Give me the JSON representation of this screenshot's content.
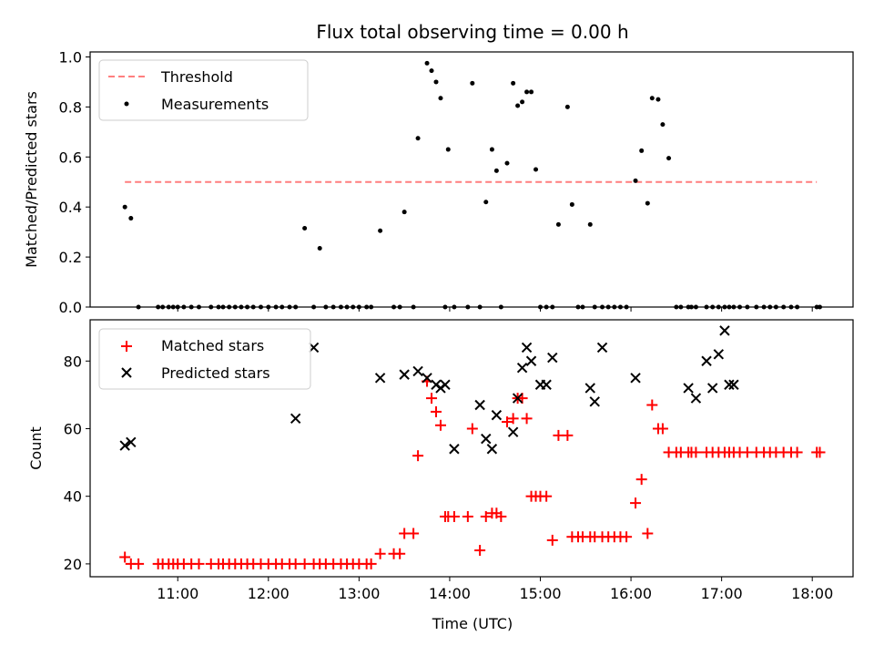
{
  "chart_data": [
    {
      "type": "scatter",
      "title": "Flux total observing time = 0.00 h",
      "xlabel": "",
      "ylabel": "Matched/Predicted stars",
      "xlim": [
        "10:02",
        "18:27"
      ],
      "ylim": [
        0,
        1.02
      ],
      "x_ticks": [
        "11:00",
        "12:00",
        "13:00",
        "14:00",
        "15:00",
        "16:00",
        "17:00",
        "18:00"
      ],
      "x_tick_labels_shown": false,
      "y_ticks": [
        0.0,
        0.2,
        0.4,
        0.6,
        0.8,
        1.0
      ],
      "y_tick_labels": [
        "0.0",
        "0.2",
        "0.4",
        "0.6",
        "0.8",
        "1.0"
      ],
      "legend_position": "upper-left",
      "grid": false,
      "threshold": {
        "name": "Threshold",
        "y": 0.5,
        "x_range": [
          "10:25",
          "18:03"
        ],
        "color": "#ff7f7f",
        "style": "dashed"
      },
      "series": [
        {
          "name": "Measurements",
          "color": "#000000",
          "marker": "dot",
          "x": [
            "10:25",
            "10:29",
            "10:34",
            "10:47",
            "10:50",
            "10:54",
            "10:57",
            "11:00",
            "11:04",
            "11:09",
            "11:14",
            "11:22",
            "11:27",
            "11:30",
            "11:34",
            "11:38",
            "11:42",
            "11:46",
            "11:50",
            "11:55",
            "12:00",
            "12:05",
            "12:09",
            "12:14",
            "12:18",
            "12:24",
            "12:30",
            "12:34",
            "12:38",
            "12:43",
            "12:48",
            "12:52",
            "12:56",
            "13:00",
            "13:05",
            "13:08",
            "13:14",
            "13:23",
            "13:27",
            "13:30",
            "13:36",
            "13:39",
            "13:45",
            "13:48",
            "13:51",
            "13:54",
            "13:57",
            "13:59",
            "14:03",
            "14:12",
            "14:15",
            "14:20",
            "14:24",
            "14:28",
            "14:31",
            "14:34",
            "14:38",
            "14:42",
            "14:45",
            "14:48",
            "14:51",
            "14:54",
            "14:57",
            "15:00",
            "15:04",
            "15:08",
            "15:12",
            "15:18",
            "15:21",
            "15:25",
            "15:28",
            "15:33",
            "15:36",
            "15:41",
            "15:45",
            "15:49",
            "15:53",
            "15:57",
            "16:03",
            "16:07",
            "16:11",
            "16:14",
            "16:18",
            "16:21",
            "16:25",
            "16:30",
            "16:33",
            "16:38",
            "16:40",
            "16:43",
            "16:50",
            "16:54",
            "16:58",
            "17:02",
            "17:05",
            "17:08",
            "17:12",
            "17:17",
            "17:23",
            "17:28",
            "17:32",
            "17:36",
            "17:41",
            "17:46",
            "17:50",
            "18:03",
            "18:05"
          ],
          "y": [
            0.4,
            0.355,
            0,
            0,
            0,
            0,
            0,
            0,
            0,
            0,
            0,
            0,
            0,
            0,
            0,
            0,
            0,
            0,
            0,
            0,
            0,
            0,
            0,
            0,
            0,
            0.315,
            0,
            0.235,
            0,
            0,
            0,
            0,
            0,
            0,
            0,
            0,
            0.305,
            0,
            0,
            0.38,
            0,
            0.675,
            0.975,
            0.945,
            0.9,
            0.835,
            0,
            0.63,
            0,
            0,
            0.895,
            0,
            0.42,
            0.63,
            0.545,
            0,
            0.575,
            0.895,
            0.805,
            0.82,
            0.86,
            0.86,
            0.55,
            0,
            0,
            0,
            0.33,
            0.8,
            0.41,
            0,
            0,
            0.33,
            0,
            0,
            0,
            0,
            0,
            0,
            0.505,
            0.625,
            0.415,
            0.835,
            0.83,
            0.73,
            0.595,
            0,
            0,
            0,
            0,
            0,
            0,
            0,
            0,
            0,
            0,
            0,
            0,
            0,
            0,
            0,
            0,
            0,
            0,
            0,
            0,
            0,
            0
          ]
        }
      ]
    },
    {
      "type": "scatter",
      "title": "",
      "xlabel": "Time (UTC)",
      "ylabel": "Count",
      "xlim": [
        "10:02",
        "18:27"
      ],
      "ylim": [
        16.2,
        92.2
      ],
      "x_ticks": [
        "11:00",
        "12:00",
        "13:00",
        "14:00",
        "15:00",
        "16:00",
        "17:00",
        "18:00"
      ],
      "x_tick_labels": [
        "11:00",
        "12:00",
        "13:00",
        "14:00",
        "15:00",
        "16:00",
        "17:00",
        "18:00"
      ],
      "y_ticks": [
        20,
        40,
        60,
        80
      ],
      "y_tick_labels": [
        "20",
        "40",
        "60",
        "80"
      ],
      "legend_position": "upper-left",
      "grid": false,
      "series": [
        {
          "name": "Matched stars",
          "color": "#ff0000",
          "marker": "plus",
          "x": [
            "10:25",
            "10:29",
            "10:34",
            "10:47",
            "10:50",
            "10:54",
            "10:57",
            "11:00",
            "11:04",
            "11:09",
            "11:14",
            "11:22",
            "11:27",
            "11:30",
            "11:34",
            "11:38",
            "11:42",
            "11:46",
            "11:50",
            "11:55",
            "12:00",
            "12:05",
            "12:09",
            "12:14",
            "12:18",
            "12:24",
            "12:30",
            "12:34",
            "12:38",
            "12:43",
            "12:48",
            "12:52",
            "12:56",
            "13:00",
            "13:05",
            "13:08",
            "13:14",
            "13:23",
            "13:27",
            "13:30",
            "13:36",
            "13:39",
            "13:45",
            "13:48",
            "13:51",
            "13:54",
            "13:57",
            "13:59",
            "14:03",
            "14:12",
            "14:15",
            "14:20",
            "14:24",
            "14:28",
            "14:31",
            "14:34",
            "14:38",
            "14:42",
            "14:45",
            "14:48",
            "14:51",
            "14:54",
            "14:57",
            "15:00",
            "15:04",
            "15:08",
            "15:12",
            "15:18",
            "15:21",
            "15:25",
            "15:28",
            "15:33",
            "15:36",
            "15:41",
            "15:45",
            "15:49",
            "15:53",
            "15:57",
            "16:03",
            "16:07",
            "16:11",
            "16:14",
            "16:18",
            "16:21",
            "16:25",
            "16:30",
            "16:33",
            "16:38",
            "16:40",
            "16:43",
            "16:50",
            "16:54",
            "16:58",
            "17:02",
            "17:05",
            "17:08",
            "17:12",
            "17:17",
            "17:23",
            "17:28",
            "17:32",
            "17:36",
            "17:41",
            "17:46",
            "17:50",
            "18:03",
            "18:05"
          ],
          "y": [
            22,
            20,
            20,
            20,
            20,
            20,
            20,
            20,
            20,
            20,
            20,
            20,
            20,
            20,
            20,
            20,
            20,
            20,
            20,
            20,
            20,
            20,
            20,
            20,
            20,
            20,
            20,
            20,
            20,
            20,
            20,
            20,
            20,
            20,
            20,
            20,
            23,
            23,
            23,
            29,
            29,
            52,
            74,
            69,
            65,
            61,
            34,
            34,
            34,
            34,
            60,
            24,
            34,
            35,
            35,
            34,
            62,
            63,
            69,
            69,
            63,
            40,
            40,
            40,
            40,
            27,
            58,
            58,
            28,
            28,
            28,
            28,
            28,
            28,
            28,
            28,
            28,
            28,
            38,
            45,
            29,
            67,
            60,
            60,
            53,
            53,
            53,
            53,
            53,
            53,
            53,
            53,
            53,
            53,
            53,
            53,
            53,
            53,
            53,
            53,
            53,
            53,
            53,
            53,
            53,
            53,
            53
          ]
        },
        {
          "name": "Predicted stars",
          "color": "#000000",
          "marker": "x",
          "x": [
            "10:25",
            "10:29",
            "12:18",
            "12:30",
            "13:14",
            "13:30",
            "13:39",
            "13:45",
            "13:51",
            "13:54",
            "13:57",
            "14:03",
            "14:20",
            "14:24",
            "14:28",
            "14:31",
            "14:42",
            "14:45",
            "14:48",
            "14:51",
            "14:54",
            "15:00",
            "15:04",
            "15:08",
            "15:33",
            "15:36",
            "15:41",
            "16:03",
            "16:38",
            "16:43",
            "16:50",
            "16:54",
            "16:58",
            "17:02",
            "17:05",
            "17:08"
          ],
          "y": [
            55,
            56,
            63,
            84,
            75,
            76,
            77,
            75,
            73,
            72,
            73,
            54,
            67,
            57,
            54,
            64,
            59,
            69,
            78,
            84,
            80,
            73,
            73,
            81,
            72,
            68,
            84,
            75,
            72,
            69,
            80,
            72,
            82,
            89,
            73,
            73
          ]
        }
      ]
    }
  ]
}
